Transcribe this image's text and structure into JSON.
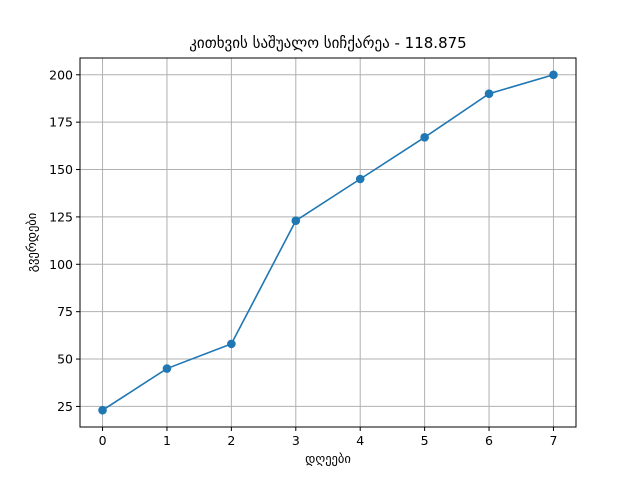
{
  "chart_data": {
    "type": "line",
    "title": "კითხვის საშუალო სიჩქარეა - 118.875",
    "xlabel": "დღეები",
    "ylabel": "გვერდები",
    "x": [
      0,
      1,
      2,
      3,
      4,
      5,
      6,
      7
    ],
    "series": [
      {
        "values": [
          23,
          45,
          58,
          123,
          145,
          167,
          190,
          200
        ]
      }
    ],
    "xlim": [
      -0.35,
      7.35
    ],
    "ylim": [
      14.15,
      208.85
    ],
    "xticks": [
      0,
      1,
      2,
      3,
      4,
      5,
      6,
      7
    ],
    "yticks": [
      25,
      50,
      75,
      100,
      125,
      150,
      175,
      200
    ],
    "grid": true,
    "colors": {
      "line": "#1f77b4",
      "grid": "#b0b0b0",
      "axes": "#000000"
    }
  }
}
